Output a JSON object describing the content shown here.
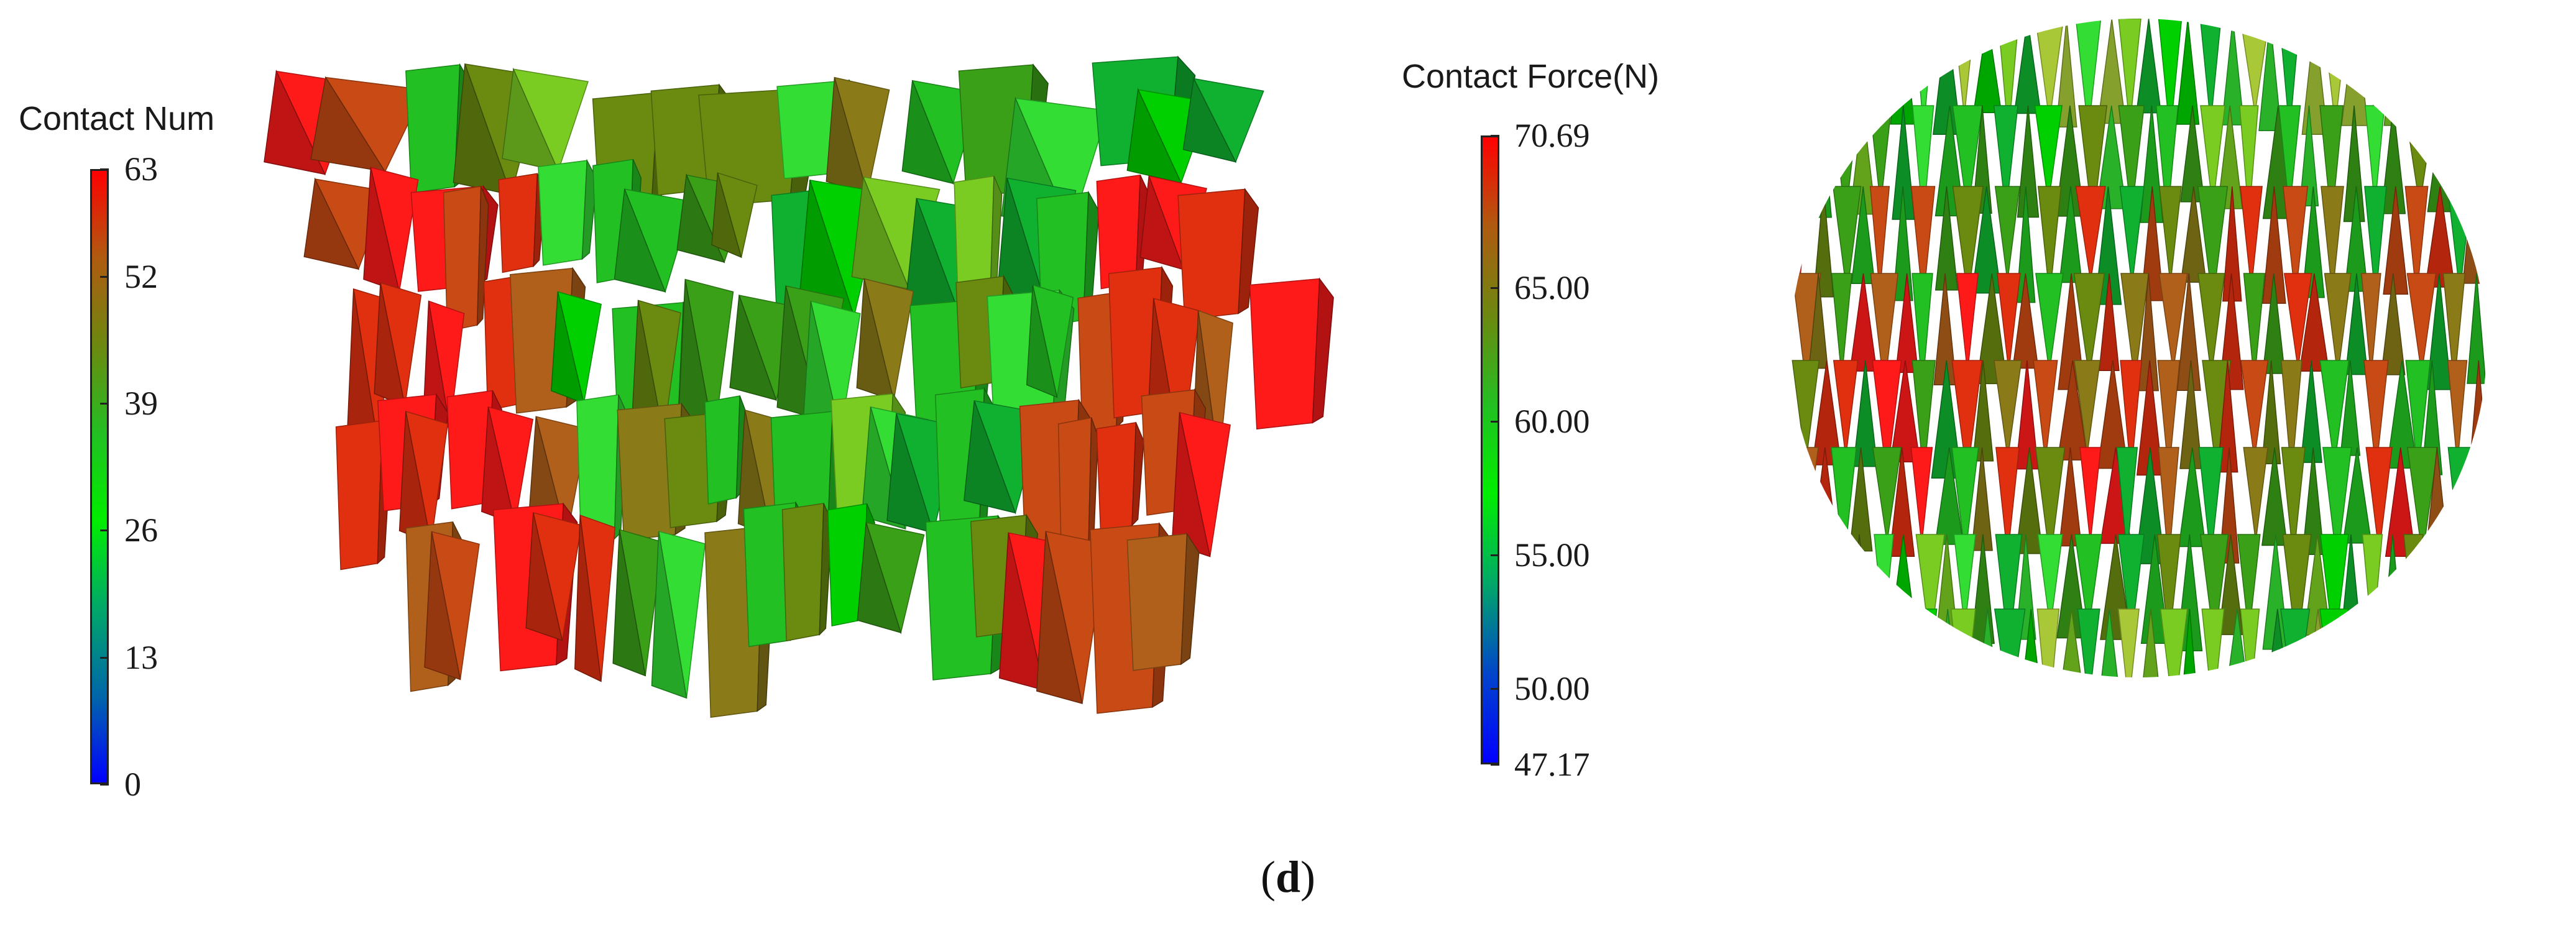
{
  "colorbar_left": {
    "title": "Contact Num",
    "min": 0,
    "max": 63,
    "ticks": [
      "63",
      "52",
      "39",
      "26",
      "13",
      "0"
    ],
    "tick_values": [
      63,
      52,
      39,
      26,
      13,
      0
    ],
    "gradient": [
      "#0000ff",
      "#0066aa",
      "#00aa66",
      "#00ee00",
      "#22c022",
      "#6a8a10",
      "#b05a10",
      "#ff0000"
    ]
  },
  "colorbar_right": {
    "title": "Contact Force(N)",
    "min": 47.17,
    "max": 70.69,
    "ticks": [
      "70.69",
      "65.00",
      "60.00",
      "55.00",
      "50.00",
      "47.17"
    ],
    "tick_values": [
      70.69,
      65.0,
      60.0,
      55.0,
      50.0,
      47.17
    ],
    "gradient": [
      "#0000ff",
      "#0044cc",
      "#00aa66",
      "#00ee00",
      "#22c022",
      "#6a8a10",
      "#b05a10",
      "#ff0000"
    ]
  },
  "caption": {
    "open": "(",
    "label": "d",
    "close": ")"
  }
}
